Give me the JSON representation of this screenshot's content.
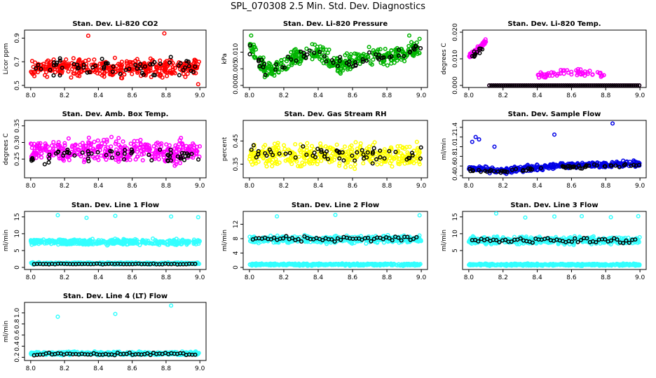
{
  "window_title": "SPL_070308  2.5 Min. Std. Dev. Diagnostics",
  "chart_data": [
    {
      "type": "scatter",
      "title": "Stan. Dev. Li-820 CO2",
      "ylabel": "Licor ppm",
      "xlim": [
        7.98,
        9.02
      ],
      "ylim": [
        0.5,
        0.95
      ],
      "xticks": [
        "8.0",
        "8.2",
        "8.4",
        "8.6",
        "8.8",
        "9.0"
      ],
      "yticks": [
        "0.5",
        "0.7",
        "0.9"
      ],
      "series": [
        {
          "color": "#ff0000",
          "y_center": 0.65,
          "y_spread": 0.06,
          "outliers": [
            [
              8.34,
              0.92
            ],
            [
              8.79,
              0.94
            ],
            [
              8.99,
              0.51
            ]
          ]
        },
        {
          "color": "#000000",
          "y_center": 0.66,
          "y_spread": 0.06,
          "outliers": []
        }
      ]
    },
    {
      "type": "scatter",
      "title": "Stan. Dev. Li-820 Pressure",
      "ylabel": "kPa",
      "xlim": [
        7.98,
        9.02
      ],
      "ylim": [
        0.0,
        0.016
      ],
      "xticks": [
        "8.0",
        "8.2",
        "8.4",
        "8.6",
        "8.8",
        "9.0"
      ],
      "yticks": [
        "0.000",
        "0.005",
        "0.010"
      ],
      "series": [
        {
          "color": "#00b400",
          "trend": [
            [
              8.0,
              0.012
            ],
            [
              8.1,
              0.004
            ],
            [
              8.2,
              0.006
            ],
            [
              8.3,
              0.009
            ],
            [
              8.4,
              0.01
            ],
            [
              8.5,
              0.006
            ],
            [
              8.6,
              0.007
            ],
            [
              8.7,
              0.009
            ],
            [
              8.8,
              0.008
            ],
            [
              8.9,
              0.01
            ],
            [
              9.0,
              0.011
            ]
          ],
          "y_spread": 0.0022,
          "outliers": [
            [
              8.01,
              0.015
            ],
            [
              8.93,
              0.015
            ],
            [
              8.99,
              0.014
            ]
          ]
        },
        {
          "color": "#000000",
          "trend": [
            [
              8.0,
              0.011
            ],
            [
              8.1,
              0.004
            ],
            [
              8.2,
              0.006
            ],
            [
              8.3,
              0.009
            ],
            [
              8.4,
              0.01
            ],
            [
              8.5,
              0.006
            ],
            [
              8.6,
              0.007
            ],
            [
              8.7,
              0.009
            ],
            [
              8.8,
              0.008
            ],
            [
              8.9,
              0.01
            ],
            [
              9.0,
              0.011
            ]
          ],
          "y_spread": 0.0015,
          "outliers": []
        }
      ]
    },
    {
      "type": "scatter",
      "title": "Stan. Dev. Li-820 Temp.",
      "ylabel": "degrees C",
      "xlim": [
        7.98,
        9.02
      ],
      "ylim": [
        0.0,
        0.02
      ],
      "xticks": [
        "8.0",
        "8.2",
        "8.4",
        "8.6",
        "8.8",
        "9.0"
      ],
      "yticks": [
        "0.000",
        "0.010",
        "0.020"
      ],
      "series": [
        {
          "color": "#ff00ff",
          "segments": [
            {
              "x": [
                8.0,
                8.1
              ],
              "trend": [
                [
                  8.0,
                  0.011
                ],
                [
                  8.05,
                  0.013
                ],
                [
                  8.1,
                  0.017
                ]
              ]
            },
            {
              "x": [
                8.4,
                8.8
              ],
              "trend": [
                [
                  8.4,
                  0.004
                ],
                [
                  8.6,
                  0.005
                ],
                [
                  8.8,
                  0.004
                ]
              ]
            }
          ],
          "baseline": 0.0
        },
        {
          "color": "#000000",
          "segments": [
            {
              "x": [
                8.02,
                8.09
              ],
              "trend": [
                [
                  8.02,
                  0.011
                ],
                [
                  8.09,
                  0.014
                ]
              ]
            }
          ],
          "baseline": 0.0
        }
      ]
    },
    {
      "type": "scatter",
      "title": "Stan. Dev. Amb. Box Temp.",
      "ylabel": "degrees C",
      "xlim": [
        7.98,
        9.02
      ],
      "ylim": [
        0.2,
        0.36
      ],
      "xticks": [
        "8.0",
        "8.2",
        "8.4",
        "8.6",
        "8.8",
        "9.0"
      ],
      "yticks": [
        "0.25",
        "0.30",
        "0.35"
      ],
      "series": [
        {
          "color": "#ff00ff",
          "y_center": 0.275,
          "y_spread": 0.03,
          "outliers": []
        },
        {
          "color": "#000000",
          "y_center": 0.26,
          "y_spread": 0.02,
          "outliers": []
        }
      ]
    },
    {
      "type": "scatter",
      "title": "Stan. Dev. Gas Stream RH",
      "ylabel": "percent",
      "xlim": [
        7.98,
        9.02
      ],
      "ylim": [
        0.3,
        0.53
      ],
      "xticks": [
        "8.0",
        "8.2",
        "8.4",
        "8.6",
        "8.8",
        "9.0"
      ],
      "yticks": [
        "0.35",
        "0.45"
      ],
      "series": [
        {
          "color": "#ffff00",
          "y_center": 0.39,
          "y_spread": 0.04,
          "outliers": []
        },
        {
          "color": "#000000",
          "y_center": 0.39,
          "y_spread": 0.03,
          "outliers": []
        }
      ]
    },
    {
      "type": "scatter",
      "title": "Stan. Dev. Sample Flow",
      "ylabel": "ml/min",
      "xlim": [
        7.98,
        9.02
      ],
      "ylim": [
        0.4,
        1.5
      ],
      "xticks": [
        "8.0",
        "8.2",
        "8.4",
        "8.6",
        "8.8",
        "9.0"
      ],
      "yticks": [
        "0.4",
        "0.6",
        "0.8",
        "1.0",
        "1.2",
        "1.4"
      ],
      "series": [
        {
          "color": "#0000e6",
          "trend": [
            [
              8.0,
              0.55
            ],
            [
              8.2,
              0.5
            ],
            [
              8.5,
              0.6
            ],
            [
              9.0,
              0.65
            ]
          ],
          "y_spread": 0.05,
          "outliers": [
            [
              8.02,
              1.1
            ],
            [
              8.04,
              1.2
            ],
            [
              8.06,
              1.15
            ],
            [
              8.15,
              1.0
            ],
            [
              8.5,
              1.25
            ],
            [
              8.84,
              1.48
            ]
          ]
        },
        {
          "color": "#000000",
          "trend": [
            [
              8.0,
              0.52
            ],
            [
              8.2,
              0.48
            ],
            [
              8.5,
              0.58
            ],
            [
              9.0,
              0.62
            ]
          ],
          "y_spread": 0.03,
          "outliers": []
        }
      ]
    },
    {
      "type": "scatter",
      "title": "Stan. Dev. Line 1 Flow",
      "ylabel": "ml/min",
      "xlim": [
        7.98,
        9.02
      ],
      "ylim": [
        0,
        16
      ],
      "xticks": [
        "8.0",
        "8.2",
        "8.4",
        "8.6",
        "8.8",
        "9.0"
      ],
      "yticks": [
        "0",
        "5",
        "10",
        "15"
      ],
      "series": [
        {
          "color": "#33ffff",
          "bands": [
            {
              "y": 7.5,
              "spread": 0.7
            },
            {
              "y": 1.2,
              "spread": 0.2
            }
          ],
          "outliers": [
            [
              8.16,
              15.5
            ],
            [
              8.33,
              14.7
            ],
            [
              8.5,
              15.3
            ],
            [
              8.83,
              15.1
            ],
            [
              8.99,
              14.9
            ]
          ]
        },
        {
          "color": "#000000",
          "bands": [
            {
              "y": 1.0,
              "spread": 0.1
            }
          ],
          "outliers": []
        }
      ]
    },
    {
      "type": "scatter",
      "title": "Stan. Dev. Line 2 Flow",
      "ylabel": "ml/min",
      "xlim": [
        7.98,
        9.02
      ],
      "ylim": [
        0,
        15
      ],
      "xticks": [
        "8.0",
        "8.2",
        "8.4",
        "8.6",
        "8.8",
        "9.0"
      ],
      "yticks": [
        "0",
        "4",
        "8",
        "12"
      ],
      "series": [
        {
          "color": "#33ffff",
          "bands": [
            {
              "y": 7.8,
              "spread": 0.8
            },
            {
              "y": 0.8,
              "spread": 0.25
            }
          ],
          "outliers": [
            [
              8.16,
              14.2
            ],
            [
              8.5,
              14.6
            ],
            [
              8.99,
              14.5
            ]
          ]
        },
        {
          "color": "#000000",
          "bands": [
            {
              "y": 8.0,
              "spread": 0.6
            }
          ],
          "outliers": []
        }
      ]
    },
    {
      "type": "scatter",
      "title": "Stan. Dev. Line 3 Flow",
      "ylabel": "ml/min",
      "xlim": [
        7.98,
        9.02
      ],
      "ylim": [
        0,
        16
      ],
      "xticks": [
        "8.0",
        "8.2",
        "8.4",
        "8.6",
        "8.8",
        "9.0"
      ],
      "yticks": [
        "5",
        "10",
        "15"
      ],
      "series": [
        {
          "color": "#33ffff",
          "bands": [
            {
              "y": 8.0,
              "spread": 0.9
            },
            {
              "y": 0.8,
              "spread": 0.25
            }
          ],
          "outliers": [
            [
              8.16,
              16.0
            ],
            [
              8.33,
              14.8
            ],
            [
              8.5,
              15.1
            ],
            [
              8.66,
              15.2
            ],
            [
              8.83,
              14.9
            ],
            [
              8.99,
              15.2
            ]
          ]
        },
        {
          "color": "#000000",
          "bands": [
            {
              "y": 8.0,
              "spread": 0.7
            }
          ],
          "outliers": []
        }
      ]
    },
    {
      "type": "scatter",
      "title": "Stan. Dev. Line 4 (LT) Flow",
      "ylabel": "ml/min",
      "xlim": [
        7.98,
        9.02
      ],
      "ylim": [
        0.18,
        1.15
      ],
      "xticks": [
        "8.0",
        "8.2",
        "8.4",
        "8.6",
        "8.8",
        "9.0"
      ],
      "yticks": [
        "0.2",
        "0.4",
        "0.6",
        "0.8",
        "1.0"
      ],
      "series": [
        {
          "color": "#33ffff",
          "bands": [
            {
              "y": 0.27,
              "spread": 0.025
            }
          ],
          "outliers": [
            [
              8.16,
              0.93
            ],
            [
              8.5,
              0.98
            ],
            [
              8.83,
              1.13
            ]
          ]
        },
        {
          "color": "#000000",
          "bands": [
            {
              "y": 0.26,
              "spread": 0.02
            }
          ],
          "outliers": []
        }
      ]
    }
  ]
}
